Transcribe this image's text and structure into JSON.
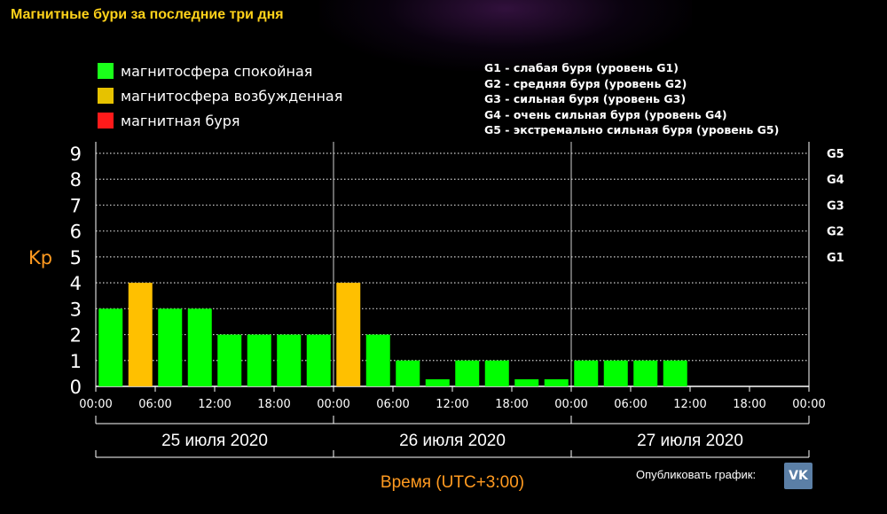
{
  "page": {
    "title": "Магнитные бури за последние три дня",
    "publish_label": "Опубликовать график:",
    "vk_label": "VK"
  },
  "legend": [
    {
      "label": "магнитосфера спокойная",
      "color": "#1aff1a"
    },
    {
      "label": "магнитосфера возбужденная",
      "color": "#e6c200"
    },
    {
      "label": "магнитная буря",
      "color": "#ff1a1a"
    }
  ],
  "storm_levels": [
    "G1 - слабая буря (уровень G1)",
    "G2 - средняя буря (уровень G2)",
    "G3 - сильная буря (уровень G3)",
    "G4 - очень сильная буря (уровень G4)",
    "G5 - экстремально сильная буря (уровень G5)"
  ],
  "chart_data": {
    "type": "bar",
    "ylabel": "Kp",
    "xlabel": "Время (UTC+3:00)",
    "ylim": [
      0,
      9
    ],
    "y_ticks": [
      0,
      1,
      2,
      3,
      4,
      5,
      6,
      7,
      8,
      9
    ],
    "right_labels": [
      {
        "value": 5,
        "label": "G1"
      },
      {
        "value": 6,
        "label": "G2"
      },
      {
        "value": 7,
        "label": "G3"
      },
      {
        "value": 8,
        "label": "G4"
      },
      {
        "value": 9,
        "label": "G5"
      }
    ],
    "x_tick_labels": [
      "00:00",
      "06:00",
      "12:00",
      "18:00",
      "00:00",
      "06:00",
      "12:00",
      "18:00",
      "00:00",
      "06:00",
      "12:00",
      "18:00",
      "00:00"
    ],
    "days": [
      "25 июля 2020",
      "26 июля 2020",
      "27 июля 2020"
    ],
    "grid": true,
    "colors": {
      "calm": "#00ff00",
      "excited": "#ffc000",
      "storm": "#ff0000"
    },
    "values": [
      3,
      4,
      3,
      3,
      2,
      2,
      2,
      2,
      4,
      2,
      1,
      0,
      1,
      1,
      0,
      0,
      1,
      1,
      1,
      1,
      null,
      null,
      null,
      null
    ],
    "status": [
      "calm",
      "excited",
      "calm",
      "calm",
      "calm",
      "calm",
      "calm",
      "calm",
      "excited",
      "calm",
      "calm",
      "calm",
      "calm",
      "calm",
      "calm",
      "calm",
      "calm",
      "calm",
      "calm",
      "calm",
      null,
      null,
      null,
      null
    ]
  }
}
